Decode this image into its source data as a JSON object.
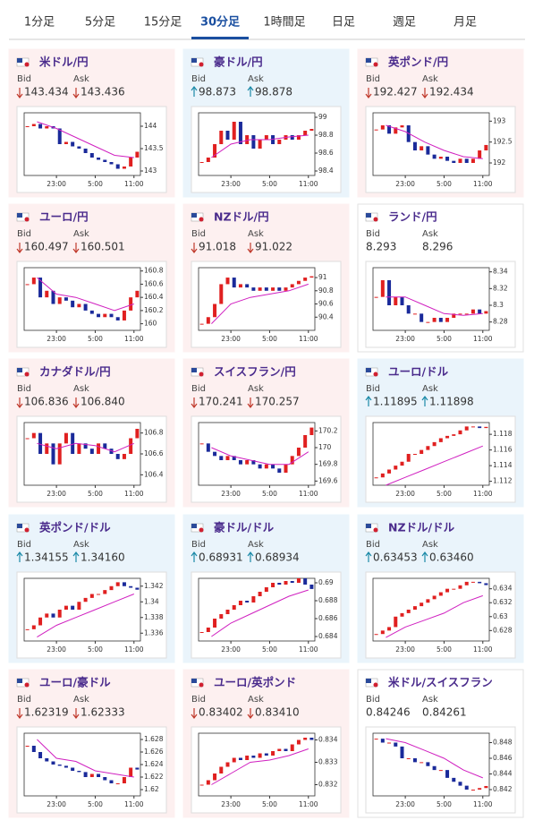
{
  "tabs": {
    "items": [
      "1分足",
      "5分足",
      "15分足",
      "30分足",
      "1時間足",
      "日足",
      "週足",
      "月足"
    ],
    "active": 3
  },
  "labels": {
    "bid": "Bid",
    "ask": "Ask"
  },
  "xlim": [
    0,
    18
  ],
  "xticks": [
    {
      "value": 5,
      "label": "23:00"
    },
    {
      "value": 11,
      "label": "5:00"
    },
    {
      "value": 17,
      "label": "11:00"
    }
  ],
  "ma_x": [
    2,
    5,
    8,
    11,
    14,
    17
  ],
  "cards": [
    {
      "pair": "米ドル/円",
      "dir": "down",
      "bid": "143.434",
      "ask": "143.436",
      "chart": {
        "ylim": [
          142.9,
          144.3
        ],
        "yticks": [
          143,
          143.5,
          144
        ],
        "closes": [
          144.0,
          144.05,
          143.95,
          144.0,
          143.95,
          143.6,
          143.65,
          143.55,
          143.5,
          143.4,
          143.3,
          143.25,
          143.2,
          143.15,
          143.05,
          143.1,
          143.3,
          143.43
        ],
        "ma": [
          144.1,
          143.95,
          143.75,
          143.55,
          143.35,
          143.3
        ]
      }
    },
    {
      "pair": "豪ドル/円",
      "dir": "up",
      "bid": "98.873",
      "ask": "98.878",
      "chart": {
        "ylim": [
          98.35,
          99.05
        ],
        "yticks": [
          98.4,
          98.6,
          98.8,
          99
        ],
        "closes": [
          98.5,
          98.55,
          98.7,
          98.85,
          98.75,
          98.95,
          98.7,
          98.8,
          98.65,
          98.75,
          98.8,
          98.7,
          98.75,
          98.8,
          98.75,
          98.8,
          98.85,
          98.87
        ],
        "ma": [
          98.55,
          98.7,
          98.75,
          98.75,
          98.78,
          98.8
        ]
      }
    },
    {
      "pair": "英ポンド/円",
      "dir": "down",
      "bid": "192.427",
      "ask": "192.434",
      "chart": {
        "ylim": [
          191.7,
          193.2
        ],
        "yticks": [
          192,
          192.5,
          193
        ],
        "closes": [
          192.8,
          192.9,
          192.7,
          192.85,
          192.9,
          192.5,
          192.3,
          192.4,
          192.2,
          192.1,
          192.15,
          192.05,
          192.0,
          192.1,
          192.0,
          192.1,
          192.3,
          192.43
        ],
        "ma": [
          192.9,
          192.75,
          192.5,
          192.3,
          192.15,
          192.1
        ]
      }
    },
    {
      "pair": "ユーロ/円",
      "dir": "down",
      "bid": "160.497",
      "ask": "160.501",
      "chart": {
        "ylim": [
          159.9,
          160.85
        ],
        "yticks": [
          160,
          160.2,
          160.4,
          160.6,
          160.8
        ],
        "closes": [
          160.6,
          160.7,
          160.4,
          160.5,
          160.3,
          160.4,
          160.35,
          160.25,
          160.3,
          160.2,
          160.15,
          160.1,
          160.15,
          160.1,
          160.05,
          160.2,
          160.4,
          160.5
        ],
        "ma": [
          160.7,
          160.45,
          160.4,
          160.3,
          160.2,
          160.3
        ]
      }
    },
    {
      "pair": "NZドル/円",
      "dir": "down",
      "bid": "91.018",
      "ask": "91.022",
      "chart": {
        "ylim": [
          90.2,
          91.15
        ],
        "yticks": [
          90.4,
          90.6,
          90.8,
          91
        ],
        "closes": [
          90.3,
          90.4,
          90.6,
          90.9,
          91.0,
          90.85,
          90.9,
          90.85,
          90.8,
          90.85,
          90.8,
          90.85,
          90.8,
          90.85,
          90.9,
          90.95,
          91.0,
          91.02
        ],
        "ma": [
          90.3,
          90.6,
          90.7,
          90.75,
          90.8,
          90.9
        ]
      }
    },
    {
      "pair": "ランド/円",
      "dir": "none",
      "bid": "8.293",
      "ask": "8.296",
      "chart": {
        "ylim": [
          8.27,
          8.345
        ],
        "yticks": [
          8.28,
          8.3,
          8.32,
          8.34
        ],
        "closes": [
          8.31,
          8.33,
          8.3,
          8.31,
          8.3,
          8.29,
          8.29,
          8.28,
          8.28,
          8.285,
          8.28,
          8.285,
          8.29,
          8.29,
          8.29,
          8.295,
          8.29,
          8.293
        ],
        "ma": [
          8.31,
          8.31,
          8.3,
          8.29,
          8.288,
          8.29
        ]
      }
    },
    {
      "pair": "カナダドル/円",
      "dir": "down",
      "bid": "106.836",
      "ask": "106.840",
      "chart": {
        "ylim": [
          106.3,
          106.9
        ],
        "yticks": [
          106.4,
          106.6,
          106.8
        ],
        "closes": [
          106.75,
          106.8,
          106.6,
          106.7,
          106.5,
          106.7,
          106.8,
          106.6,
          106.7,
          106.65,
          106.6,
          106.7,
          106.65,
          106.6,
          106.55,
          106.6,
          106.75,
          106.84
        ],
        "ma": [
          106.7,
          106.65,
          106.7,
          106.68,
          106.62,
          106.7
        ]
      }
    },
    {
      "pair": "スイスフラン/円",
      "dir": "down",
      "bid": "170.241",
      "ask": "170.257",
      "chart": {
        "ylim": [
          169.55,
          170.3
        ],
        "yticks": [
          169.6,
          169.8,
          170,
          170.2
        ],
        "closes": [
          170.05,
          169.95,
          169.9,
          169.85,
          169.9,
          169.85,
          169.8,
          169.85,
          169.8,
          169.75,
          169.8,
          169.75,
          169.7,
          169.8,
          169.9,
          170.0,
          170.15,
          170.24
        ],
        "ma": [
          170.0,
          169.9,
          169.85,
          169.8,
          169.8,
          169.95
        ]
      }
    },
    {
      "pair": "ユーロ/ドル",
      "dir": "up",
      "bid": "1.11895",
      "ask": "1.11898",
      "chart": {
        "ylim": [
          1.1115,
          1.1195
        ],
        "yticks": [
          1.112,
          1.114,
          1.116,
          1.118
        ],
        "closes": [
          1.1125,
          1.113,
          1.1135,
          1.114,
          1.1145,
          1.1155,
          1.1155,
          1.116,
          1.1165,
          1.117,
          1.1175,
          1.1178,
          1.118,
          1.1185,
          1.119,
          1.119,
          1.1188,
          1.11895
        ],
        "ma": [
          1.1115,
          1.1125,
          1.1135,
          1.1145,
          1.1155,
          1.1165
        ]
      }
    },
    {
      "pair": "英ポンド/ドル",
      "dir": "up",
      "bid": "1.34155",
      "ask": "1.34160",
      "chart": {
        "ylim": [
          1.335,
          1.343
        ],
        "yticks": [
          1.336,
          1.338,
          1.34,
          1.342
        ],
        "closes": [
          1.3365,
          1.337,
          1.338,
          1.3385,
          1.338,
          1.339,
          1.3395,
          1.339,
          1.34,
          1.3405,
          1.341,
          1.341,
          1.3415,
          1.342,
          1.3425,
          1.342,
          1.3418,
          1.34155
        ],
        "ma": [
          1.3355,
          1.337,
          1.338,
          1.339,
          1.34,
          1.341
        ]
      }
    },
    {
      "pair": "豪ドル/ドル",
      "dir": "up",
      "bid": "0.68931",
      "ask": "0.68934",
      "chart": {
        "ylim": [
          0.6835,
          0.6905
        ],
        "yticks": [
          0.684,
          0.686,
          0.688,
          0.69
        ],
        "closes": [
          0.6845,
          0.685,
          0.686,
          0.6865,
          0.687,
          0.6875,
          0.688,
          0.6878,
          0.6885,
          0.689,
          0.6895,
          0.69,
          0.6898,
          0.6902,
          0.69,
          0.6905,
          0.6898,
          0.68931
        ],
        "ma": [
          0.684,
          0.6855,
          0.6865,
          0.6875,
          0.6885,
          0.6892
        ]
      }
    },
    {
      "pair": "NZドル/ドル",
      "dir": "up",
      "bid": "0.63453",
      "ask": "0.63460",
      "chart": {
        "ylim": [
          0.6265,
          0.6355
        ],
        "yticks": [
          0.628,
          0.63,
          0.632,
          0.634
        ],
        "closes": [
          0.6275,
          0.628,
          0.6285,
          0.63,
          0.6305,
          0.631,
          0.6315,
          0.632,
          0.6325,
          0.633,
          0.6335,
          0.634,
          0.634,
          0.6345,
          0.635,
          0.635,
          0.6348,
          0.63453
        ],
        "ma": [
          0.627,
          0.6285,
          0.6295,
          0.6305,
          0.632,
          0.633
        ]
      }
    },
    {
      "pair": "ユーロ/豪ドル",
      "dir": "down",
      "bid": "1.62319",
      "ask": "1.62333",
      "chart": {
        "ylim": [
          1.619,
          1.629
        ],
        "yticks": [
          1.62,
          1.622,
          1.624,
          1.626,
          1.628
        ],
        "closes": [
          1.627,
          1.626,
          1.625,
          1.6245,
          1.624,
          1.6238,
          1.6235,
          1.623,
          1.6228,
          1.622,
          1.6225,
          1.622,
          1.6215,
          1.621,
          1.621,
          1.622,
          1.6235,
          1.6232
        ],
        "ma": [
          1.628,
          1.625,
          1.6245,
          1.623,
          1.6225,
          1.622
        ]
      }
    },
    {
      "pair": "ユーロ/英ポンド",
      "dir": "down",
      "bid": "0.83402",
      "ask": "0.83410",
      "chart": {
        "ylim": [
          0.8315,
          0.8343
        ],
        "yticks": [
          0.832,
          0.833,
          0.834
        ],
        "closes": [
          0.832,
          0.8322,
          0.8325,
          0.8328,
          0.833,
          0.8332,
          0.8331,
          0.8333,
          0.8332,
          0.8334,
          0.8333,
          0.8335,
          0.8336,
          0.8335,
          0.8338,
          0.834,
          0.8341,
          0.834
        ],
        "ma": [
          0.832,
          0.8325,
          0.833,
          0.8331,
          0.8333,
          0.8336
        ]
      }
    },
    {
      "pair": "米ドル/スイスフラン",
      "dir": "none",
      "bid": "0.84246",
      "ask": "0.84261",
      "chart": {
        "ylim": [
          0.8412,
          0.8492
        ],
        "yticks": [
          0.842,
          0.844,
          0.846,
          0.848
        ],
        "closes": [
          0.8485,
          0.848,
          0.848,
          0.8475,
          0.846,
          0.846,
          0.8455,
          0.8455,
          0.845,
          0.8445,
          0.8445,
          0.8435,
          0.843,
          0.8425,
          0.842,
          0.842,
          0.8422,
          0.84246
        ],
        "ma": [
          0.8485,
          0.848,
          0.847,
          0.846,
          0.8445,
          0.8435
        ]
      }
    }
  ]
}
